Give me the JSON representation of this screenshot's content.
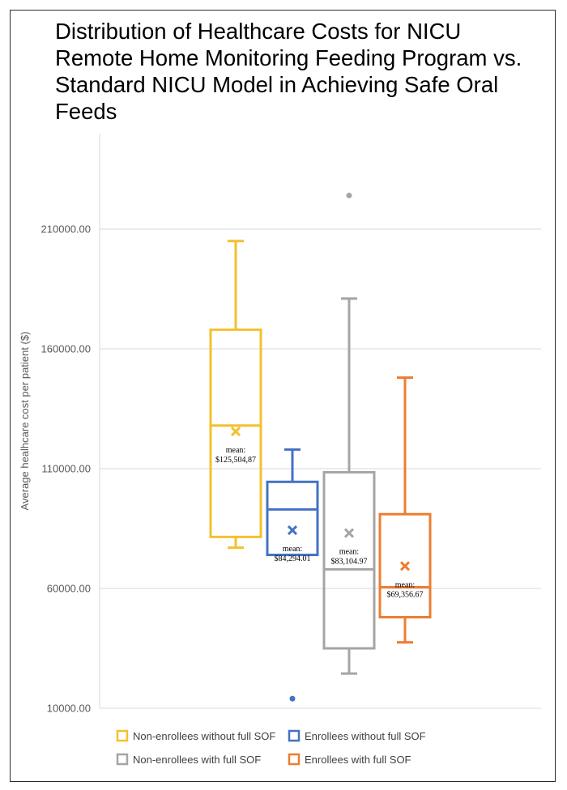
{
  "chart_data": {
    "type": "boxplot",
    "title": "Distribution of Healthcare Costs for NICU Remote Home Monitoring Feeding Program vs. Standard NICU Model in Achieving Safe Oral Feeds",
    "ylabel": "Average healhcare cost per patient ($)",
    "xlabel": "",
    "ylim": [
      10000,
      230000
    ],
    "yticks": [
      10000,
      60000,
      110000,
      160000,
      210000
    ],
    "ytick_labels": [
      "10000.00",
      "60000.00",
      "110000.00",
      "160000.00",
      "210000.00"
    ],
    "grid": true,
    "legend_position": "bottom",
    "series": [
      {
        "name": "Non-enrollees without full SOF",
        "color": "#F2C12E",
        "whisker_low": 77000,
        "q1": 81500,
        "median": 128000,
        "q3": 168000,
        "whisker_high": 205000,
        "mean": 125504.87,
        "mean_label": "$125,504,87",
        "outliers": []
      },
      {
        "name": "Enrollees without full SOF",
        "color": "#4472C4",
        "whisker_low": 74000,
        "q1": 74000,
        "median": 93000,
        "q3": 104500,
        "whisker_high": 118000,
        "mean": 84294.01,
        "mean_label": "$84,294.01",
        "outliers": [
          14000
        ]
      },
      {
        "name": "Non-enrollees with full SOF",
        "color": "#A5A5A5",
        "whisker_low": 24500,
        "q1": 35000,
        "median": 68000,
        "q3": 108500,
        "whisker_high": 181000,
        "mean": 83104.97,
        "mean_label": "$83,104.97",
        "outliers": [
          224000
        ]
      },
      {
        "name": "Enrollees with full SOF",
        "color": "#ED7D31",
        "whisker_low": 37500,
        "q1": 48000,
        "median": 60500,
        "q3": 91000,
        "whisker_high": 148000,
        "mean": 69356.67,
        "mean_label": "$69,356.67",
        "outliers": []
      }
    ],
    "mean_label_prefix": "mean:"
  }
}
